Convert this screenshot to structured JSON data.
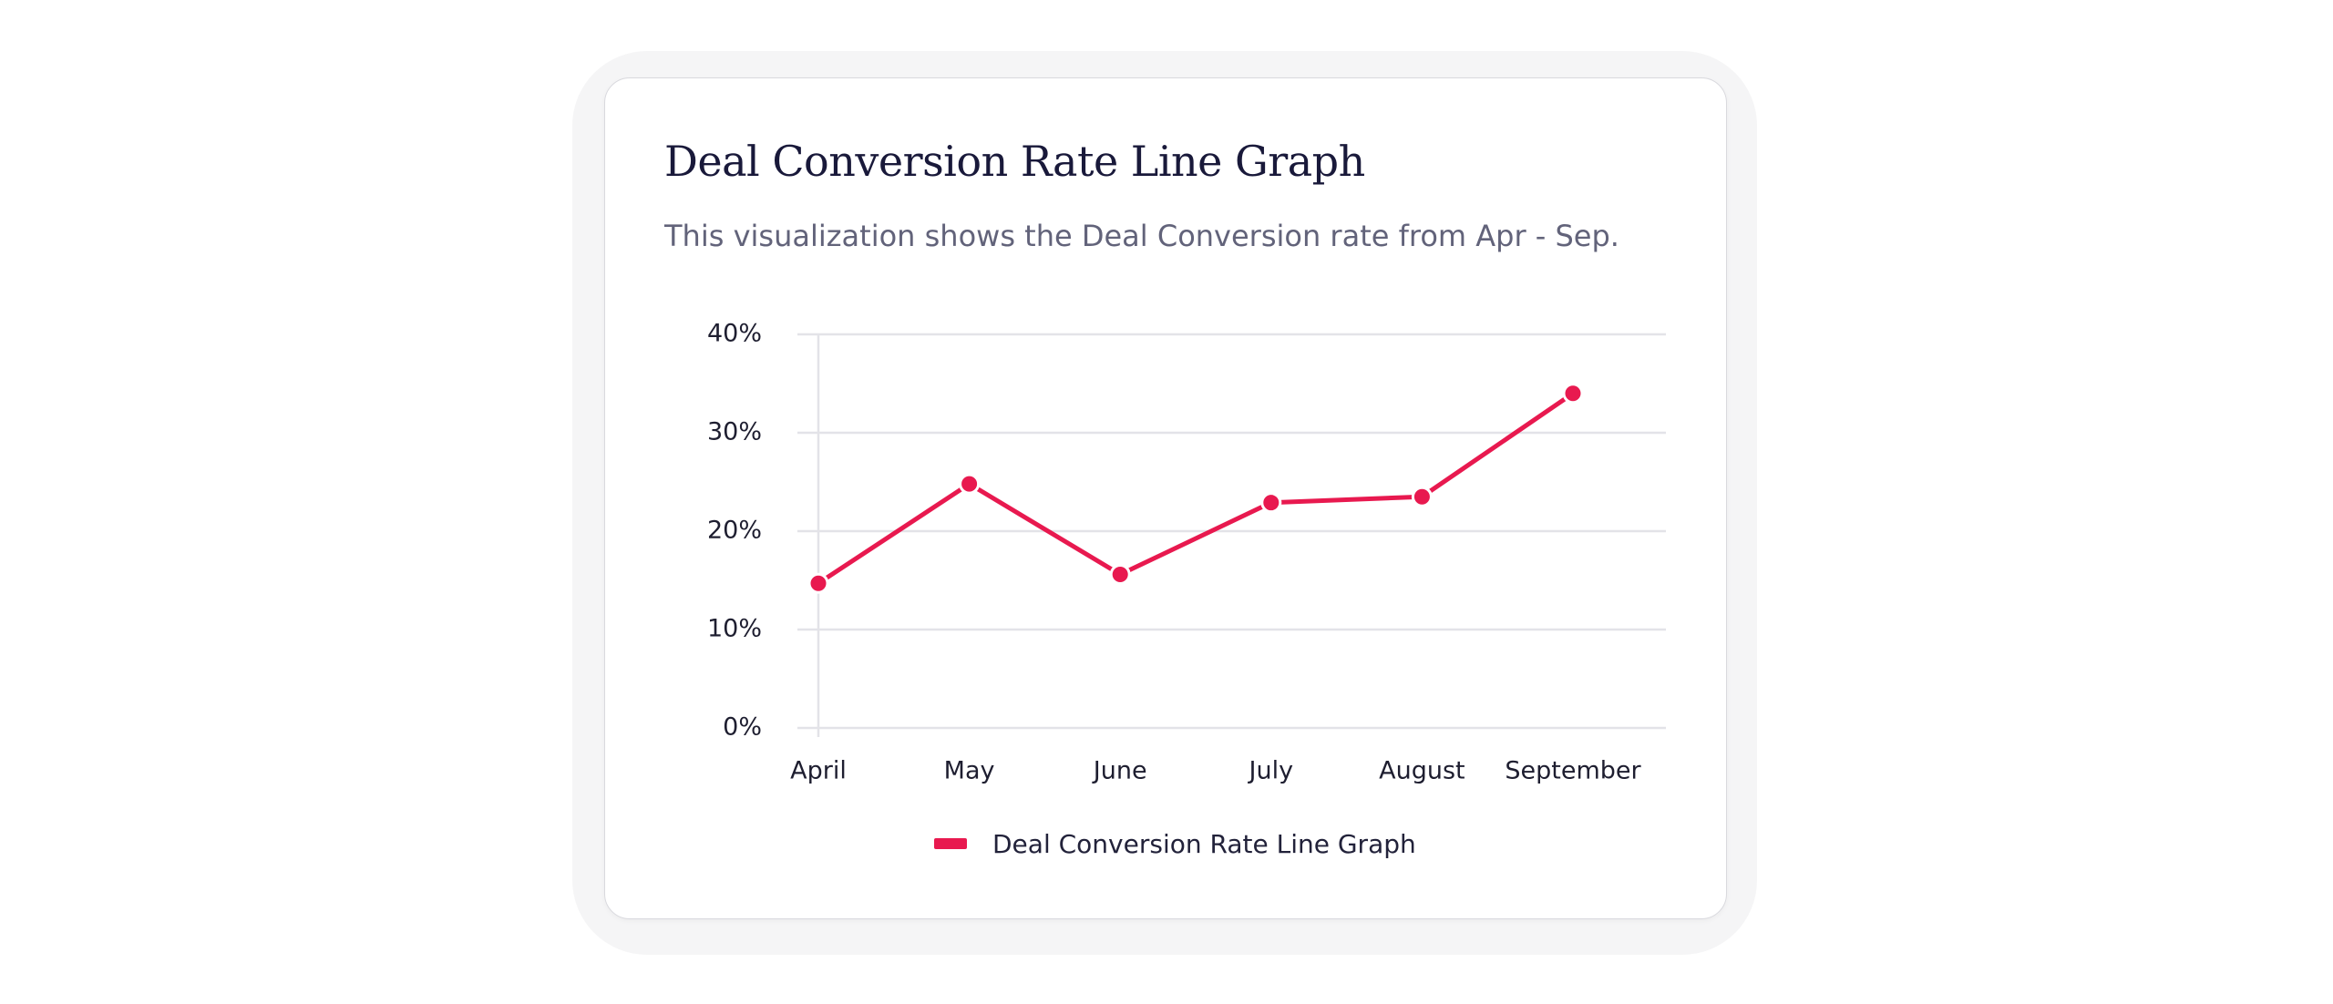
{
  "card": {
    "title": "Deal Conversion Rate Line Graph",
    "subtitle": "This visualization shows the Deal Conversion rate from Apr - Sep."
  },
  "colors": {
    "series": "#e8194f",
    "grid": "#e3e3e8",
    "axis_text": "#1e1e30"
  },
  "chart_data": {
    "type": "line",
    "categories": [
      "April",
      "May",
      "June",
      "July",
      "August",
      "September"
    ],
    "series": [
      {
        "name": "Deal Conversion Rate Line Graph",
        "values": [
          14.7,
          24.8,
          15.6,
          22.9,
          23.5,
          34.0
        ]
      }
    ],
    "y_ticks": [
      "0%",
      "10%",
      "20%",
      "30%",
      "40%"
    ],
    "ylim": [
      0,
      40
    ],
    "y_unit": "%",
    "grid": true,
    "legend_position": "bottom-center"
  }
}
